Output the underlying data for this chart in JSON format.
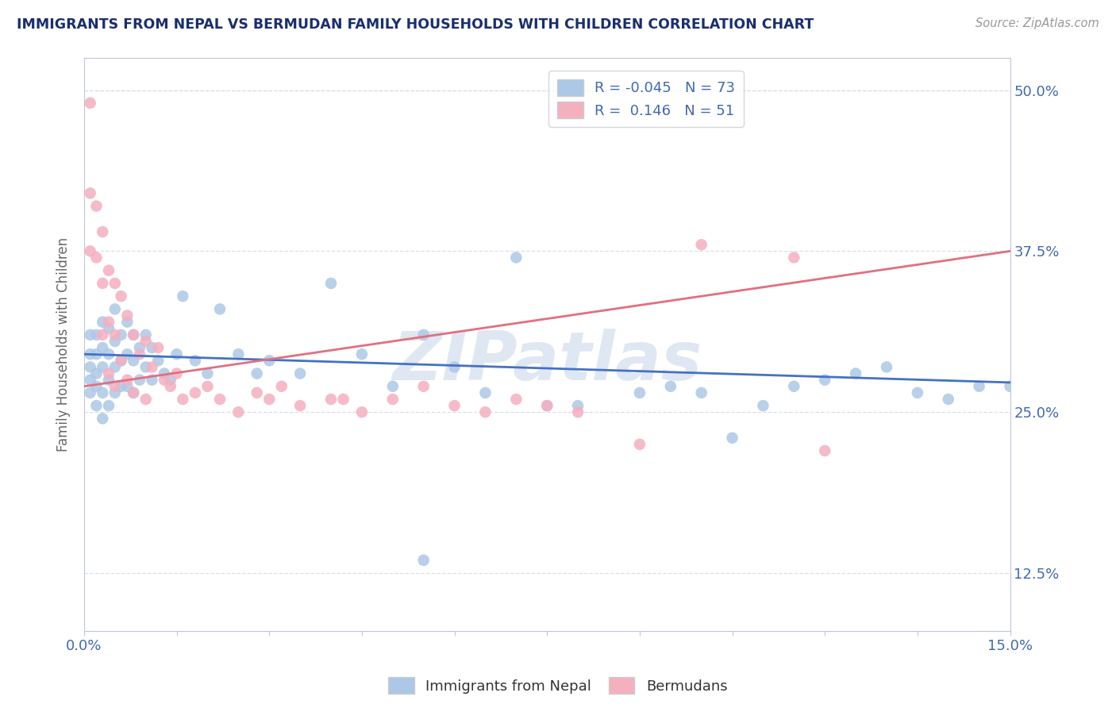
{
  "title": "IMMIGRANTS FROM NEPAL VS BERMUDAN FAMILY HOUSEHOLDS WITH CHILDREN CORRELATION CHART",
  "source_text": "Source: ZipAtlas.com",
  "ylabel": "Family Households with Children",
  "xlim": [
    0.0,
    0.15
  ],
  "ylim": [
    0.08,
    0.525
  ],
  "yticks_right": [
    0.125,
    0.25,
    0.375,
    0.5
  ],
  "yticklabels_right": [
    "12.5%",
    "25.0%",
    "37.5%",
    "50.0%"
  ],
  "legend_blue_label": "R = -0.045   N = 73",
  "legend_pink_label": "R =  0.146   N = 51",
  "legend_bottom_blue": "Immigrants from Nepal",
  "legend_bottom_pink": "Bermudans",
  "blue_color": "#adc8e6",
  "pink_color": "#f5b0c0",
  "blue_line_color": "#4472c4",
  "pink_line_color": "#e07080",
  "legend_text_color": "#4169b0",
  "title_color": "#1a2e6e",
  "axis_color": "#c0c8d8",
  "watermark_text": "ZIPatlas",
  "background_color": "#ffffff",
  "grid_color": "#d8e0ec",
  "blue_scatter_x": [
    0.001,
    0.001,
    0.001,
    0.001,
    0.001,
    0.002,
    0.002,
    0.002,
    0.002,
    0.002,
    0.003,
    0.003,
    0.003,
    0.003,
    0.003,
    0.004,
    0.004,
    0.004,
    0.004,
    0.005,
    0.005,
    0.005,
    0.005,
    0.006,
    0.006,
    0.006,
    0.007,
    0.007,
    0.007,
    0.008,
    0.008,
    0.008,
    0.009,
    0.009,
    0.01,
    0.01,
    0.011,
    0.011,
    0.012,
    0.013,
    0.014,
    0.015,
    0.016,
    0.018,
    0.02,
    0.022,
    0.025,
    0.028,
    0.03,
    0.035,
    0.04,
    0.045,
    0.05,
    0.055,
    0.06,
    0.065,
    0.07,
    0.075,
    0.08,
    0.09,
    0.095,
    0.1,
    0.105,
    0.11,
    0.115,
    0.12,
    0.125,
    0.13,
    0.135,
    0.14,
    0.145,
    0.15,
    0.055
  ],
  "blue_scatter_y": [
    0.295,
    0.31,
    0.285,
    0.275,
    0.265,
    0.31,
    0.295,
    0.28,
    0.27,
    0.255,
    0.32,
    0.3,
    0.285,
    0.265,
    0.245,
    0.315,
    0.295,
    0.275,
    0.255,
    0.33,
    0.305,
    0.285,
    0.265,
    0.31,
    0.29,
    0.27,
    0.32,
    0.295,
    0.27,
    0.31,
    0.29,
    0.265,
    0.3,
    0.275,
    0.31,
    0.285,
    0.3,
    0.275,
    0.29,
    0.28,
    0.275,
    0.295,
    0.34,
    0.29,
    0.28,
    0.33,
    0.295,
    0.28,
    0.29,
    0.28,
    0.35,
    0.295,
    0.27,
    0.31,
    0.285,
    0.265,
    0.37,
    0.255,
    0.255,
    0.265,
    0.27,
    0.265,
    0.23,
    0.255,
    0.27,
    0.275,
    0.28,
    0.285,
    0.265,
    0.26,
    0.27,
    0.27,
    0.135
  ],
  "pink_scatter_x": [
    0.001,
    0.001,
    0.001,
    0.002,
    0.002,
    0.003,
    0.003,
    0.003,
    0.004,
    0.004,
    0.004,
    0.005,
    0.005,
    0.005,
    0.006,
    0.006,
    0.007,
    0.007,
    0.008,
    0.008,
    0.009,
    0.01,
    0.01,
    0.011,
    0.012,
    0.013,
    0.014,
    0.015,
    0.016,
    0.018,
    0.02,
    0.022,
    0.025,
    0.028,
    0.03,
    0.032,
    0.035,
    0.04,
    0.042,
    0.045,
    0.05,
    0.055,
    0.06,
    0.065,
    0.07,
    0.075,
    0.08,
    0.09,
    0.1,
    0.115,
    0.12
  ],
  "pink_scatter_y": [
    0.49,
    0.42,
    0.375,
    0.41,
    0.37,
    0.39,
    0.35,
    0.31,
    0.36,
    0.32,
    0.28,
    0.35,
    0.31,
    0.27,
    0.34,
    0.29,
    0.325,
    0.275,
    0.31,
    0.265,
    0.295,
    0.305,
    0.26,
    0.285,
    0.3,
    0.275,
    0.27,
    0.28,
    0.26,
    0.265,
    0.27,
    0.26,
    0.25,
    0.265,
    0.26,
    0.27,
    0.255,
    0.26,
    0.26,
    0.25,
    0.26,
    0.27,
    0.255,
    0.25,
    0.26,
    0.255,
    0.25,
    0.225,
    0.38,
    0.37,
    0.22
  ],
  "blue_trend_x": [
    0.0,
    0.15
  ],
  "blue_trend_y": [
    0.295,
    0.273
  ],
  "pink_trend_x": [
    0.0,
    0.15
  ],
  "pink_trend_y": [
    0.27,
    0.375
  ]
}
